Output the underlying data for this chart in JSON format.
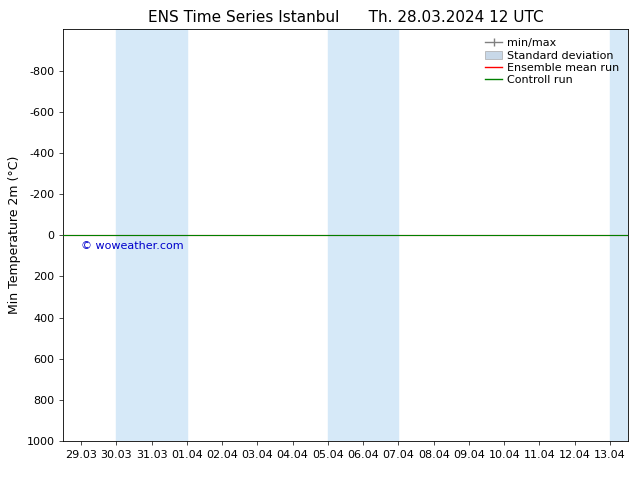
{
  "title_left": "ENS Time Series Istanbul",
  "title_right": "Th. 28.03.2024 12 UTC",
  "ylabel": "Min Temperature 2m (°C)",
  "ylim_top": -1000,
  "ylim_bottom": 1000,
  "yticks": [
    -800,
    -600,
    -400,
    -200,
    0,
    200,
    400,
    600,
    800,
    1000
  ],
  "x_labels": [
    "29.03",
    "30.03",
    "31.03",
    "01.04",
    "02.04",
    "03.04",
    "04.04",
    "05.04",
    "06.04",
    "07.04",
    "08.04",
    "09.04",
    "10.04",
    "11.04",
    "12.04",
    "13.04"
  ],
  "x_positions": [
    0,
    1,
    2,
    3,
    4,
    5,
    6,
    7,
    8,
    9,
    10,
    11,
    12,
    13,
    14,
    15
  ],
  "shaded_bands": [
    {
      "xmin": 1,
      "xmax": 3
    },
    {
      "xmin": 7,
      "xmax": 9
    },
    {
      "xmin": 15,
      "xmax": 16
    }
  ],
  "shaded_color": "#d6e9f8",
  "horizontal_line_y": 0,
  "ensemble_mean_color": "#ff0000",
  "control_run_color": "#008000",
  "minmax_color": "#808080",
  "stddev_color": "#c8d8e8",
  "watermark_text": "© woweather.com",
  "watermark_color": "#0000cc",
  "background_color": "#ffffff",
  "title_fontsize": 11,
  "axis_fontsize": 9,
  "tick_fontsize": 8,
  "legend_fontsize": 8
}
